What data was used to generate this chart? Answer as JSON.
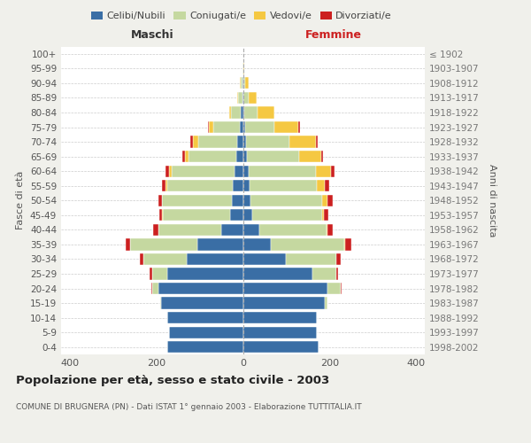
{
  "age_groups": [
    "0-4",
    "5-9",
    "10-14",
    "15-19",
    "20-24",
    "25-29",
    "30-34",
    "35-39",
    "40-44",
    "45-49",
    "50-54",
    "55-59",
    "60-64",
    "65-69",
    "70-74",
    "75-79",
    "80-84",
    "85-89",
    "90-94",
    "95-99",
    "100+"
  ],
  "birth_years": [
    "1998-2002",
    "1993-1997",
    "1988-1992",
    "1983-1987",
    "1978-1982",
    "1973-1977",
    "1968-1972",
    "1963-1967",
    "1958-1962",
    "1953-1957",
    "1948-1952",
    "1943-1947",
    "1938-1942",
    "1933-1937",
    "1928-1932",
    "1923-1927",
    "1918-1922",
    "1913-1917",
    "1908-1912",
    "1903-1907",
    "≤ 1902"
  ],
  "maschi": {
    "celibi": [
      175,
      170,
      175,
      190,
      195,
      175,
      130,
      105,
      50,
      30,
      26,
      24,
      20,
      16,
      14,
      8,
      5,
      2,
      1,
      0,
      0
    ],
    "coniugati": [
      0,
      0,
      0,
      2,
      15,
      35,
      100,
      155,
      145,
      155,
      160,
      150,
      145,
      110,
      90,
      60,
      22,
      10,
      5,
      2,
      0
    ],
    "vedovi": [
      0,
      0,
      0,
      0,
      0,
      0,
      0,
      0,
      1,
      1,
      2,
      4,
      5,
      8,
      12,
      10,
      5,
      2,
      1,
      0,
      0
    ],
    "divorziati": [
      0,
      0,
      0,
      0,
      2,
      5,
      8,
      10,
      12,
      8,
      8,
      8,
      8,
      5,
      5,
      3,
      0,
      0,
      0,
      0,
      0
    ]
  },
  "femmine": {
    "nubili": [
      175,
      170,
      170,
      190,
      195,
      160,
      100,
      65,
      38,
      22,
      18,
      15,
      14,
      10,
      8,
      5,
      3,
      2,
      1,
      0,
      0
    ],
    "coniugate": [
      0,
      0,
      0,
      5,
      30,
      55,
      115,
      170,
      155,
      160,
      165,
      155,
      155,
      120,
      100,
      68,
      30,
      12,
      5,
      2,
      0
    ],
    "vedove": [
      0,
      0,
      0,
      0,
      0,
      0,
      0,
      1,
      3,
      5,
      12,
      20,
      35,
      50,
      60,
      55,
      40,
      18,
      8,
      2,
      0
    ],
    "divorziate": [
      0,
      0,
      0,
      0,
      2,
      5,
      10,
      15,
      12,
      10,
      12,
      10,
      8,
      5,
      5,
      3,
      0,
      0,
      0,
      0,
      0
    ]
  },
  "colors": {
    "celibi": "#3A6EA5",
    "coniugati": "#C5D8A0",
    "vedovi": "#F5C842",
    "divorziati": "#CC2020"
  },
  "xlim": 420,
  "title": "Popolazione per età, sesso e stato civile - 2003",
  "subtitle": "COMUNE DI BRUGNERA (PN) - Dati ISTAT 1° gennaio 2003 - Elaborazione TUTTITALIA.IT",
  "ylabel_left": "Fasce di età",
  "ylabel_right": "Anni di nascita",
  "xlabel_left": "Maschi",
  "xlabel_right": "Femmine",
  "bg_color": "#f0f0eb",
  "plot_bg": "#ffffff"
}
